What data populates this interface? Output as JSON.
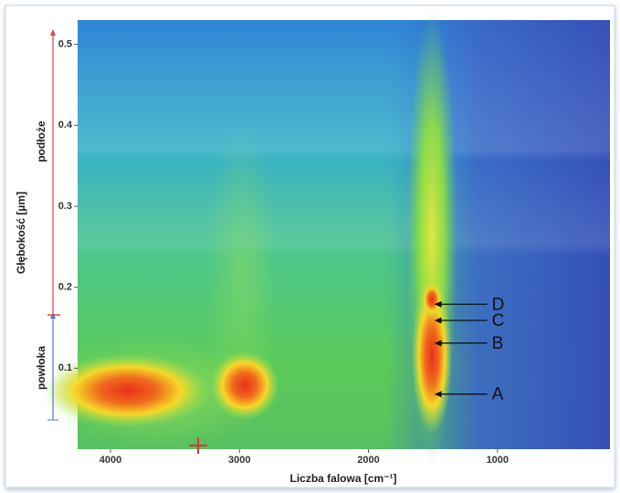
{
  "chart_data": {
    "type": "heatmap",
    "x_label": "Liczba falowa [cm⁻¹]",
    "y_label": "Głębokość [µm]",
    "xlim": [
      4255,
      128
    ],
    "xticks": [
      4000,
      3000,
      2000,
      1000
    ],
    "ylim": [
      0,
      0.53
    ],
    "yticks": [
      0.1,
      0.2,
      0.3,
      0.4,
      0.5
    ],
    "annotations": [
      {
        "label": "A",
        "x": 1490,
        "y": 0.068
      },
      {
        "label": "B",
        "x": 1490,
        "y": 0.131
      },
      {
        "label": "C",
        "x": 1490,
        "y": 0.159
      },
      {
        "label": "D",
        "x": 1490,
        "y": 0.179
      }
    ]
  },
  "side_labels": [
    "powłoka",
    "podłoże"
  ]
}
